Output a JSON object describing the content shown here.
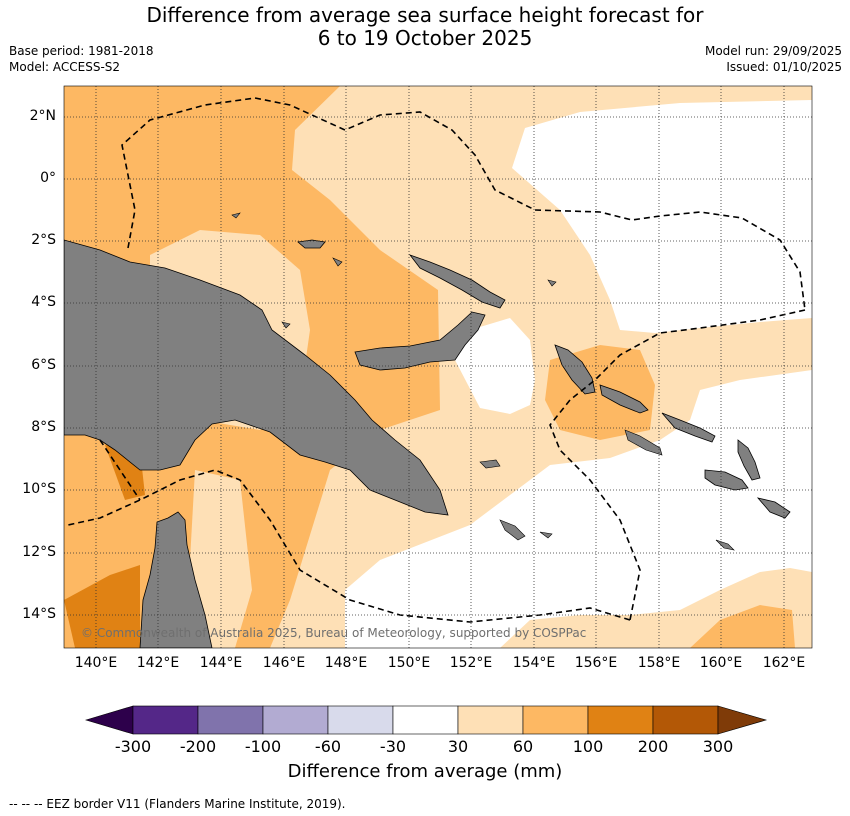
{
  "title": {
    "line1": "Difference from average sea surface height forecast for",
    "line2": "6 to 19 October 2025"
  },
  "meta": {
    "base_period": "Base period: 1981-2018",
    "model": "Model: ACCESS-S2",
    "model_run": "Model run: 29/09/2025",
    "issued": "Issued: 01/10/2025"
  },
  "lat_labels": [
    "2°N",
    "0°",
    "2°S",
    "4°S",
    "6°S",
    "8°S",
    "10°S",
    "12°S",
    "14°S"
  ],
  "lon_labels": [
    "140°E",
    "142°E",
    "144°E",
    "146°E",
    "148°E",
    "150°E",
    "152°E",
    "154°E",
    "156°E",
    "158°E",
    "160°E",
    "162°E"
  ],
  "colorbar": {
    "ticks": [
      "-300",
      "-200",
      "-100",
      "-60",
      "-30",
      "30",
      "60",
      "100",
      "200",
      "300"
    ],
    "colors": [
      "#2d004b",
      "#542788",
      "#8073ac",
      "#b2abd2",
      "#d8daeb",
      "#ffffff",
      "#fee0b6",
      "#fdb863",
      "#e08214",
      "#b35806",
      "#7f3b08"
    ],
    "label": "Difference from average (mm)"
  },
  "map_colors": {
    "land": "#808080",
    "ocean_light": "#fee0b6",
    "ocean_mid": "#fdb863",
    "ocean_dark": "#e08214",
    "neutral": "#ffffff"
  },
  "copyright": "© Commonwealth of Australia 2025, Bureau of Meteorology, supported by COSPPac",
  "footer": "--  --  -- EEZ border V11 (Flanders Marine Institute, 2019)."
}
